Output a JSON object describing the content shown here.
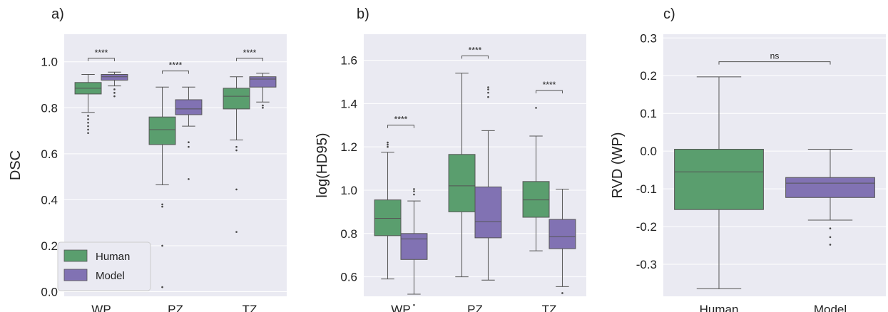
{
  "colors": {
    "human": "#5a9e6e",
    "model": "#8172b3",
    "panel_bg": "#eaeaf2",
    "grid": "#ffffff",
    "line": "#555555"
  },
  "chart_data": [
    {
      "type": "box",
      "panel_label": "a)",
      "ylabel": "DSC",
      "ylim": [
        -0.02,
        1.12
      ],
      "yticks": [
        "0.0",
        "0.2",
        "0.4",
        "0.6",
        "0.8",
        "1.0"
      ],
      "categories": [
        "WP",
        "PZ",
        "TZ"
      ],
      "legend": {
        "placement": "lower-left",
        "entries": [
          "Human",
          "Model"
        ]
      },
      "series": [
        {
          "name": "Human",
          "color": "#5a9e6e",
          "boxes": [
            {
              "whislo": 0.78,
              "q1": 0.86,
              "med": 0.885,
              "q3": 0.91,
              "whishi": 0.945,
              "fliers": [
                0.765,
                0.75,
                0.735,
                0.72,
                0.705,
                0.69
              ]
            },
            {
              "whislo": 0.465,
              "q1": 0.64,
              "med": 0.705,
              "q3": 0.76,
              "whishi": 0.89,
              "fliers": [
                0.38,
                0.37,
                0.2,
                0.02
              ]
            },
            {
              "whislo": 0.66,
              "q1": 0.795,
              "med": 0.85,
              "q3": 0.885,
              "whishi": 0.935,
              "fliers": [
                0.63,
                0.615,
                0.445,
                0.26
              ]
            }
          ]
        },
        {
          "name": "Model",
          "color": "#8172b3",
          "boxes": [
            {
              "whislo": 0.895,
              "q1": 0.92,
              "med": 0.935,
              "q3": 0.945,
              "whishi": 0.955,
              "fliers": [
                0.88,
                0.865,
                0.85
              ]
            },
            {
              "whislo": 0.72,
              "q1": 0.77,
              "med": 0.795,
              "q3": 0.835,
              "whishi": 0.89,
              "fliers": [
                0.65,
                0.63,
                0.49
              ]
            },
            {
              "whislo": 0.825,
              "q1": 0.89,
              "med": 0.925,
              "q3": 0.935,
              "whishi": 0.95,
              "fliers": [
                0.81,
                0.8
              ]
            }
          ]
        }
      ],
      "annotations": [
        {
          "category": "WP",
          "y": 1.015,
          "text": "****"
        },
        {
          "category": "PZ",
          "y": 0.96,
          "text": "****"
        },
        {
          "category": "TZ",
          "y": 1.015,
          "text": "****"
        }
      ]
    },
    {
      "type": "box",
      "panel_label": "b)",
      "ylabel": "log(HD95)",
      "ylim": [
        0.51,
        1.72
      ],
      "yticks": [
        "0.6",
        "0.8",
        "1.0",
        "1.2",
        "1.4",
        "1.6"
      ],
      "categories": [
        "WP",
        "PZ",
        "TZ"
      ],
      "series": [
        {
          "name": "Human",
          "color": "#5a9e6e",
          "boxes": [
            {
              "whislo": 0.59,
              "q1": 0.79,
              "med": 0.87,
              "q3": 0.955,
              "whishi": 1.175,
              "fliers": [
                1.2,
                1.21,
                1.22
              ]
            },
            {
              "whislo": 0.6,
              "q1": 0.9,
              "med": 1.02,
              "q3": 1.165,
              "whishi": 1.54,
              "fliers": []
            },
            {
              "whislo": 0.72,
              "q1": 0.875,
              "med": 0.955,
              "q3": 1.04,
              "whishi": 1.25,
              "fliers": [
                1.38
              ]
            }
          ]
        },
        {
          "name": "Model",
          "color": "#8172b3",
          "boxes": [
            {
              "whislo": 0.52,
              "q1": 0.68,
              "med": 0.775,
              "q3": 0.8,
              "whishi": 0.95,
              "fliers": [
                0.98,
                0.995,
                1.005,
                0.47
              ]
            },
            {
              "whislo": 0.585,
              "q1": 0.78,
              "med": 0.855,
              "q3": 1.015,
              "whishi": 1.275,
              "fliers": [
                1.43,
                1.45,
                1.465,
                1.475
              ]
            },
            {
              "whislo": 0.555,
              "q1": 0.73,
              "med": 0.785,
              "q3": 0.865,
              "whishi": 1.005,
              "fliers": [
                0.525
              ]
            }
          ]
        }
      ],
      "annotations": [
        {
          "category": "WP",
          "y": 1.3,
          "text": "****"
        },
        {
          "category": "PZ",
          "y": 1.62,
          "text": "****"
        },
        {
          "category": "TZ",
          "y": 1.46,
          "text": "****"
        }
      ]
    },
    {
      "type": "box",
      "panel_label": "c)",
      "ylabel": "RVD (WP)",
      "ylim": [
        -0.385,
        0.31
      ],
      "yticks": [
        "-0.3",
        "-0.2",
        "-0.1",
        "0.0",
        "0.1",
        "0.2",
        "0.3"
      ],
      "categories": [
        "Human",
        "Model"
      ],
      "series": [
        {
          "name": "",
          "boxes": [
            {
              "category": "Human",
              "color": "#5a9e6e",
              "whislo": -0.365,
              "q1": -0.155,
              "med": -0.055,
              "q3": 0.005,
              "whishi": 0.197,
              "fliers": []
            },
            {
              "category": "Model",
              "color": "#8172b3",
              "whislo": -0.183,
              "q1": -0.123,
              "med": -0.085,
              "q3": -0.07,
              "whishi": 0.005,
              "fliers": [
                -0.205,
                -0.228,
                -0.248
              ]
            }
          ]
        }
      ],
      "annotations": [
        {
          "from": "Human",
          "to": "Model",
          "y": 0.237,
          "text": "ns"
        }
      ]
    }
  ]
}
